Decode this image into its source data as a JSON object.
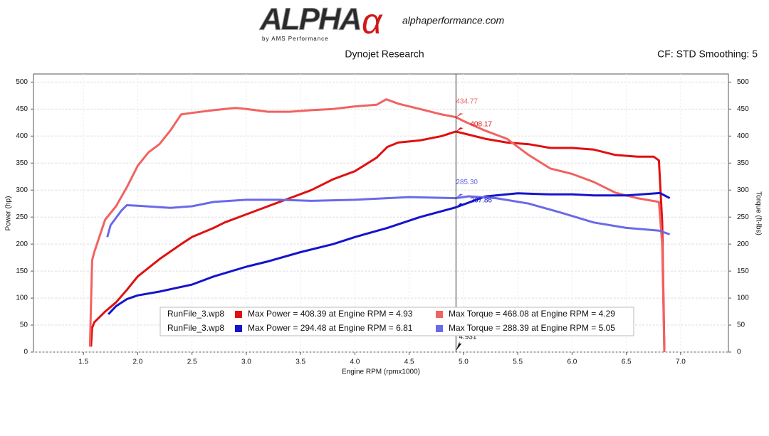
{
  "header": {
    "logo": "ALPHA",
    "logo_mark": "α",
    "logo_sub": "by AMS Performance",
    "website": "alphaperformance.com",
    "source": "Dynojet Research",
    "settings": "CF: STD Smoothing: 5"
  },
  "chart_data": {
    "type": "line",
    "x_label": "Engine RPM (rpmx1000)",
    "y_label": "Power (hp)",
    "y2_label": "Torque (ft-lbs)",
    "xlim": [
      1.04,
      7.44
    ],
    "xticks": [
      1.5,
      {
        "value": 2,
        "label": "2.0"
      },
      2.5,
      {
        "value": 3,
        "label": "3.0"
      },
      3.5,
      {
        "value": 4,
        "label": "4.0"
      },
      4.5,
      {
        "value": 5,
        "label": "5.0"
      },
      5.5,
      {
        "value": 6,
        "label": "6.0"
      },
      6.5,
      {
        "value": 7,
        "label": "7.0"
      }
    ],
    "ylim": [
      0,
      515
    ],
    "yticks": [
      0,
      50,
      100,
      150,
      200,
      250,
      300,
      350,
      400,
      450,
      500
    ],
    "y2lim": [
      0,
      515
    ],
    "y2ticks": [
      0,
      50,
      100,
      150,
      200,
      250,
      300,
      350,
      400,
      450,
      500
    ],
    "grid": true,
    "series": [
      {
        "name": "Max Power = 408.39 at Engine RPM = 4.93",
        "run": "RunFile_3.wp8",
        "color": "#e01010",
        "x": [
          1.57,
          1.58,
          1.6,
          1.7,
          1.8,
          1.9,
          2.0,
          2.2,
          2.4,
          2.5,
          2.7,
          2.8,
          3.0,
          3.2,
          3.4,
          3.6,
          3.8,
          4.0,
          4.2,
          4.3,
          4.4,
          4.6,
          4.8,
          4.93,
          5.0,
          5.2,
          5.4,
          5.6,
          5.8,
          6.0,
          6.2,
          6.4,
          6.6,
          6.75,
          6.8,
          6.83,
          6.85
        ],
        "values": [
          10,
          45,
          55,
          75,
          92,
          115,
          140,
          172,
          200,
          213,
          230,
          240,
          255,
          270,
          285,
          300,
          320,
          335,
          360,
          380,
          388,
          392,
          400,
          408.39,
          405,
          395,
          388,
          385,
          378,
          378,
          375,
          365,
          362,
          362,
          355,
          240,
          5
        ]
      },
      {
        "name": "Max Torque = 468.08 at Engine RPM = 4.29",
        "run": "RunFile_3.wp8",
        "color": "#f26262",
        "axis": "y2",
        "x": [
          1.56,
          1.58,
          1.6,
          1.7,
          1.8,
          1.9,
          2.0,
          2.1,
          2.2,
          2.3,
          2.4,
          2.5,
          2.7,
          2.9,
          3.0,
          3.2,
          3.4,
          3.6,
          3.8,
          4.0,
          4.2,
          4.29,
          4.4,
          4.6,
          4.8,
          4.93,
          5.0,
          5.2,
          5.4,
          5.6,
          5.8,
          6.0,
          6.2,
          6.4,
          6.6,
          6.8,
          6.83,
          6.85
        ],
        "values": [
          10,
          170,
          185,
          245,
          270,
          305,
          345,
          370,
          385,
          410,
          440,
          443,
          448,
          452,
          450,
          445,
          445,
          448,
          450,
          455,
          458,
          468.08,
          460,
          450,
          440,
          435,
          428,
          410,
          395,
          365,
          340,
          330,
          315,
          295,
          285,
          278,
          200,
          0
        ]
      },
      {
        "name": "Max Power = 294.48 at Engine RPM = 6.81",
        "run": "RunFile_3.wp8",
        "color": "#1414cc",
        "x": [
          1.73,
          1.8,
          1.9,
          2.0,
          2.2,
          2.5,
          2.7,
          3.0,
          3.2,
          3.5,
          3.8,
          4.0,
          4.3,
          4.6,
          4.93,
          5.2,
          5.5,
          5.8,
          6.0,
          6.2,
          6.5,
          6.81,
          6.9
        ],
        "values": [
          70,
          85,
          98,
          105,
          112,
          125,
          140,
          158,
          168,
          185,
          200,
          213,
          230,
          250,
          268,
          288,
          294,
          292,
          292,
          290,
          290,
          294.48,
          285
        ]
      },
      {
        "name": "Max Torque = 288.39 at Engine RPM = 5.05",
        "run": "RunFile_3.wp8",
        "color": "#6a6ae8",
        "axis": "y2",
        "x": [
          1.72,
          1.75,
          1.85,
          1.9,
          2.0,
          2.3,
          2.5,
          2.7,
          3.0,
          3.3,
          3.6,
          4.0,
          4.5,
          4.93,
          5.05,
          5.3,
          5.6,
          5.9,
          6.2,
          6.5,
          6.8,
          6.9
        ],
        "values": [
          213,
          235,
          262,
          272,
          271,
          267,
          270,
          278,
          282,
          282,
          280,
          282,
          287,
          285,
          288.39,
          285,
          275,
          258,
          240,
          230,
          225,
          218
        ]
      }
    ],
    "cursor": {
      "x": 4.931,
      "readouts": [
        {
          "value": 434.77,
          "axis": "y2",
          "color": "#f26262"
        },
        {
          "value": 408.17,
          "axis": "y",
          "color": "#e01010"
        },
        {
          "value": 285.3,
          "label": "285.30",
          "axis": "y2",
          "color": "#6a6ae8"
        },
        {
          "value": 267.86,
          "axis": "y",
          "color": "#1414cc"
        }
      ]
    }
  }
}
